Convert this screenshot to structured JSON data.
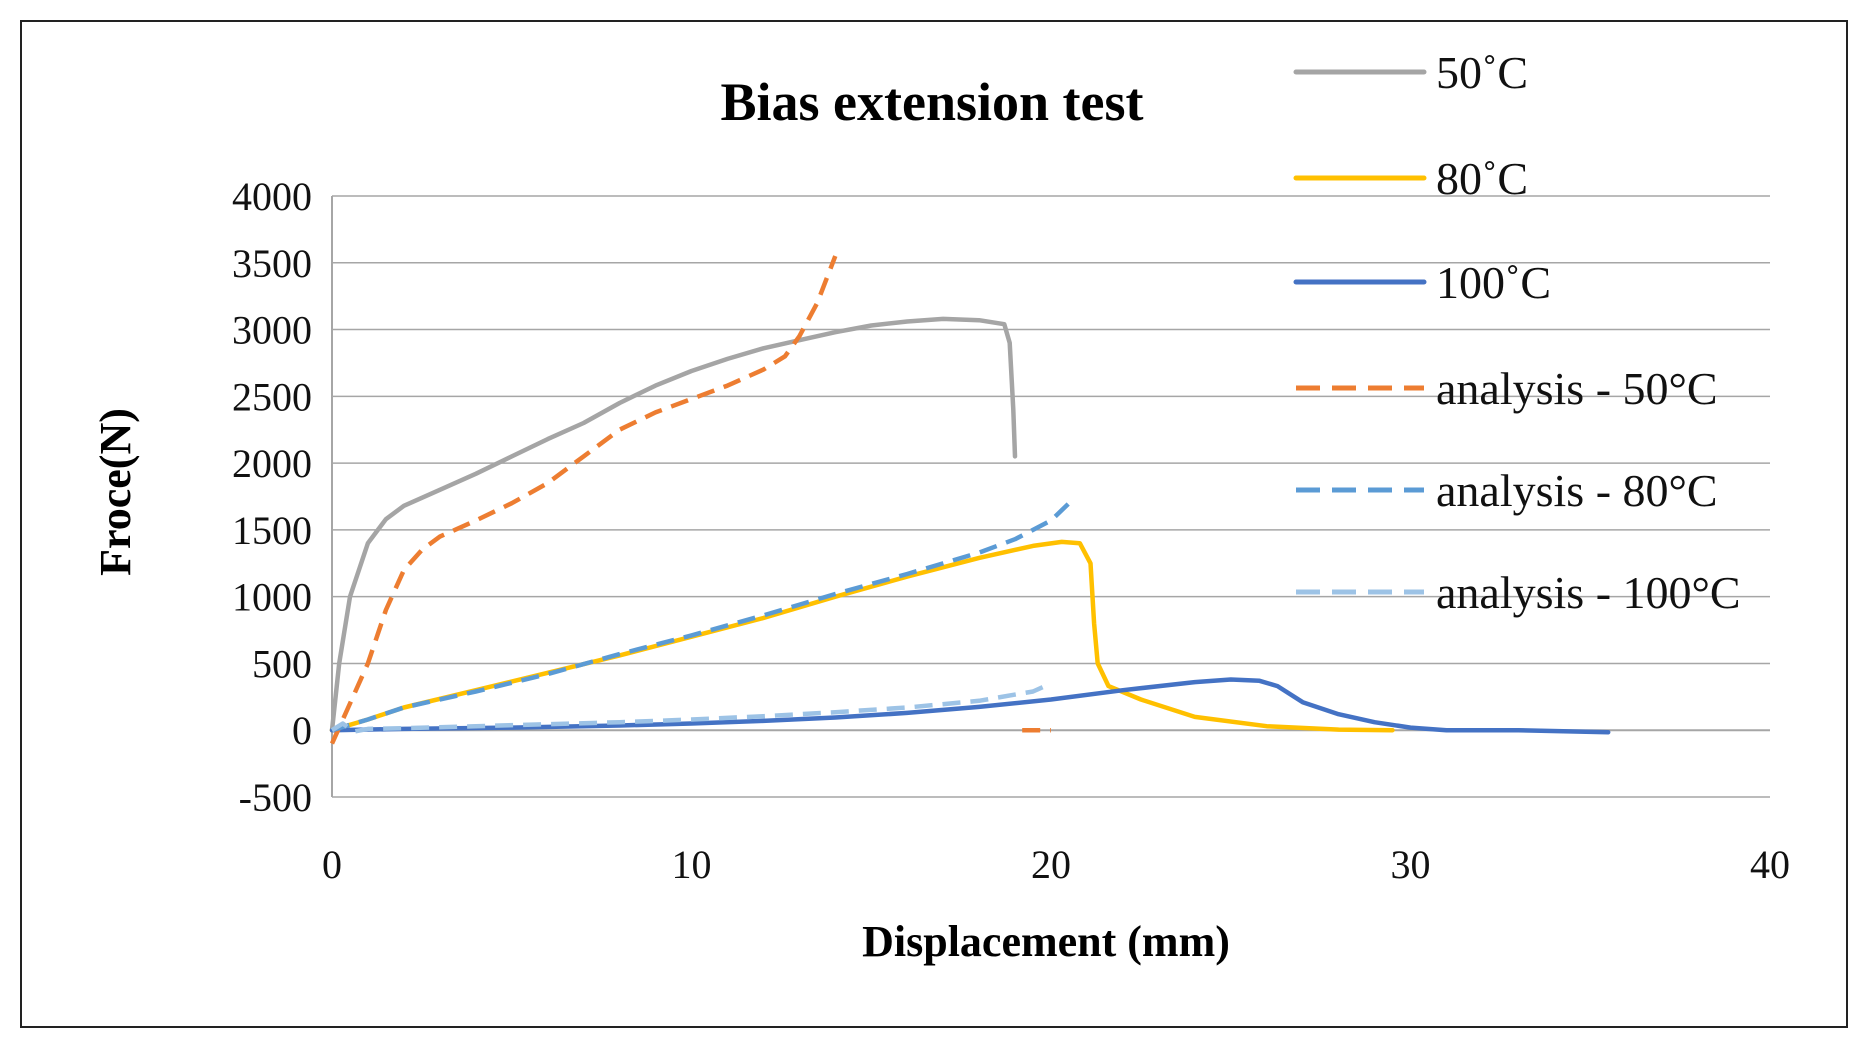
{
  "chart_data": {
    "type": "line",
    "title": "Bias extension test",
    "xlabel": "Displacement (mm)",
    "ylabel": "Froce(N)",
    "xlim": [
      0,
      40
    ],
    "ylim": [
      -500,
      4000
    ],
    "x_ticks": [
      0,
      10,
      20,
      30,
      40
    ],
    "y_ticks": [
      -500,
      0,
      500,
      1000,
      1500,
      2000,
      2500,
      3000,
      3500,
      4000
    ],
    "grid": "horizontal",
    "legend_position": "right",
    "series": [
      {
        "name": "50˚C",
        "color": "#A5A5A5",
        "dash": "solid",
        "points": [
          [
            0,
            0
          ],
          [
            0.2,
            500
          ],
          [
            0.5,
            1000
          ],
          [
            1,
            1400
          ],
          [
            1.5,
            1580
          ],
          [
            2,
            1680
          ],
          [
            3,
            1800
          ],
          [
            4,
            1920
          ],
          [
            5,
            2050
          ],
          [
            6,
            2180
          ],
          [
            7,
            2300
          ],
          [
            8,
            2450
          ],
          [
            9,
            2580
          ],
          [
            10,
            2690
          ],
          [
            11,
            2780
          ],
          [
            12,
            2860
          ],
          [
            13,
            2920
          ],
          [
            14,
            2980
          ],
          [
            15,
            3030
          ],
          [
            16,
            3060
          ],
          [
            17,
            3080
          ],
          [
            18,
            3070
          ],
          [
            18.7,
            3040
          ],
          [
            18.85,
            2900
          ],
          [
            18.95,
            2400
          ],
          [
            19,
            2050
          ]
        ]
      },
      {
        "name": "80˚C",
        "color": "#FFC000",
        "dash": "solid",
        "points": [
          [
            0,
            0
          ],
          [
            1,
            80
          ],
          [
            2,
            170
          ],
          [
            4,
            300
          ],
          [
            6,
            430
          ],
          [
            8,
            560
          ],
          [
            10,
            700
          ],
          [
            12,
            840
          ],
          [
            14,
            1000
          ],
          [
            16,
            1150
          ],
          [
            18,
            1290
          ],
          [
            19.5,
            1380
          ],
          [
            20.3,
            1410
          ],
          [
            20.8,
            1400
          ],
          [
            21.1,
            1250
          ],
          [
            21.2,
            800
          ],
          [
            21.3,
            500
          ],
          [
            21.6,
            330
          ],
          [
            22.5,
            230
          ],
          [
            24,
            100
          ],
          [
            26,
            30
          ],
          [
            28,
            5
          ],
          [
            29.5,
            0
          ]
        ]
      },
      {
        "name": "100˚C",
        "color": "#4472C4",
        "dash": "solid",
        "points": [
          [
            0,
            0
          ],
          [
            2,
            10
          ],
          [
            5,
            20
          ],
          [
            8,
            35
          ],
          [
            10,
            50
          ],
          [
            12,
            70
          ],
          [
            14,
            95
          ],
          [
            16,
            130
          ],
          [
            18,
            175
          ],
          [
            20,
            230
          ],
          [
            22,
            300
          ],
          [
            24,
            360
          ],
          [
            25,
            380
          ],
          [
            25.8,
            370
          ],
          [
            26.3,
            330
          ],
          [
            27,
            210
          ],
          [
            28,
            120
          ],
          [
            29,
            60
          ],
          [
            30,
            20
          ],
          [
            31,
            0
          ],
          [
            33,
            0
          ],
          [
            35.5,
            -15
          ]
        ]
      },
      {
        "name": "analysis - 50°C",
        "color": "#ED7D31",
        "dash": "dashed",
        "points": [
          [
            0,
            -100
          ],
          [
            0.5,
            200
          ],
          [
            1,
            500
          ],
          [
            1.5,
            900
          ],
          [
            2,
            1200
          ],
          [
            2.5,
            1350
          ],
          [
            3,
            1450
          ],
          [
            4,
            1570
          ],
          [
            5,
            1700
          ],
          [
            6,
            1850
          ],
          [
            7,
            2050
          ],
          [
            8,
            2250
          ],
          [
            9,
            2380
          ],
          [
            10,
            2480
          ],
          [
            11,
            2580
          ],
          [
            12,
            2700
          ],
          [
            12.6,
            2800
          ],
          [
            13,
            2950
          ],
          [
            13.5,
            3200
          ],
          [
            14,
            3550
          ]
        ],
        "extra_points": [
          [
            19.2,
            0
          ],
          [
            20,
            0
          ]
        ]
      },
      {
        "name": "analysis - 80°C",
        "color": "#5B9BD5",
        "dash": "dashed",
        "points": [
          [
            0,
            0
          ],
          [
            1,
            80
          ],
          [
            2,
            170
          ],
          [
            4,
            290
          ],
          [
            6,
            420
          ],
          [
            8,
            570
          ],
          [
            10,
            710
          ],
          [
            12,
            860
          ],
          [
            14,
            1020
          ],
          [
            16,
            1170
          ],
          [
            18,
            1330
          ],
          [
            19,
            1430
          ],
          [
            20,
            1570
          ],
          [
            20.5,
            1700
          ]
        ]
      },
      {
        "name": "analysis - 100°C",
        "color": "#9DC3E6",
        "dash": "dashed",
        "points": [
          [
            0,
            0
          ],
          [
            0.3,
            50
          ],
          [
            0.6,
            -10
          ],
          [
            1,
            10
          ],
          [
            2,
            15
          ],
          [
            4,
            30
          ],
          [
            6,
            45
          ],
          [
            8,
            60
          ],
          [
            10,
            80
          ],
          [
            12,
            105
          ],
          [
            14,
            135
          ],
          [
            16,
            170
          ],
          [
            18,
            220
          ],
          [
            19.5,
            290
          ],
          [
            20,
            350
          ]
        ]
      }
    ]
  }
}
